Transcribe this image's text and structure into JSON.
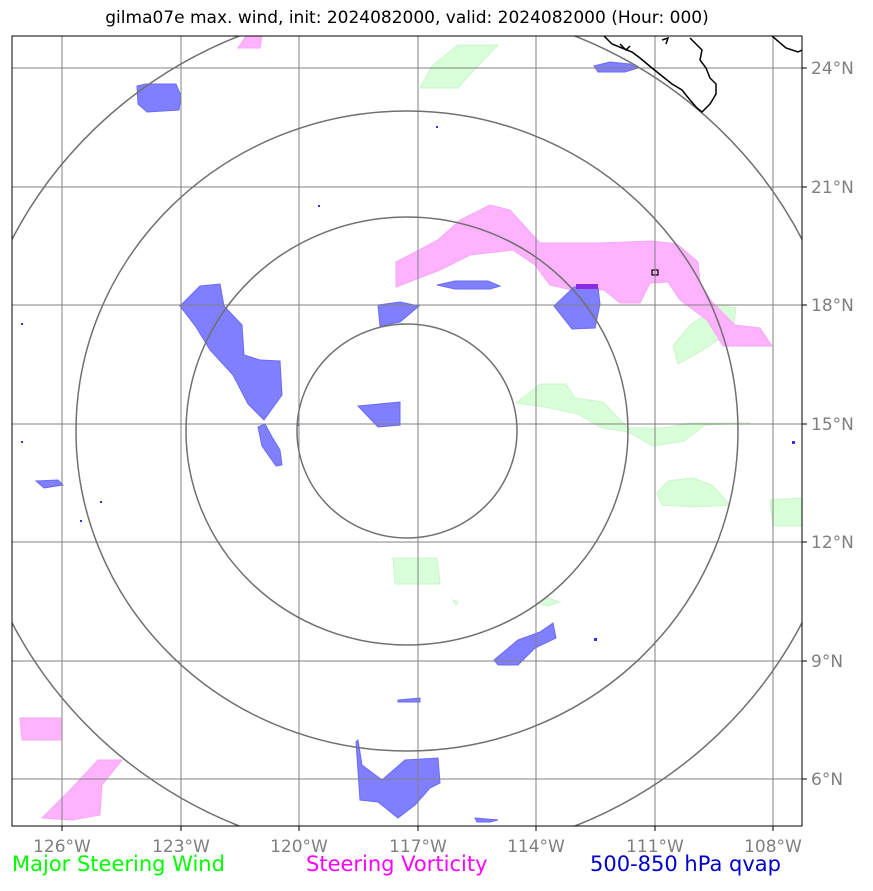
{
  "title": "gilma07e max. wind, init: 2024082000, valid: 2024082000 (Hour: 000)",
  "x_ticks": [
    "126°W",
    "123°W",
    "120°W",
    "117°W",
    "114°W",
    "111°W",
    "108°W"
  ],
  "y_ticks": [
    "24°N",
    "21°N",
    "18°N",
    "15°N",
    "12°N",
    "9°N",
    "6°N"
  ],
  "legend": {
    "steering_wind": "Major Steering Wind",
    "steering_vorticity": "Steering Vorticity",
    "qvap": "500-850 hPa qvap"
  },
  "colors": {
    "steering_wind": "#00ff00",
    "steering_vorticity": "#ff00ff",
    "qvap": "#0000cc",
    "wind_fill": "#d9ffd9",
    "vorticity_fill": "#ffb3ff",
    "qvap_fill": "#7f7fff",
    "grid": "#808080",
    "range_rings": "#707070",
    "coastline": "#000000"
  },
  "map": {
    "projection": "lat-lon",
    "lon_range": [
      "127.3°W",
      "107.3°W"
    ],
    "lat_range": [
      "5°N",
      "25°N"
    ],
    "center": "117°W, 15°N",
    "range_rings": 4
  }
}
